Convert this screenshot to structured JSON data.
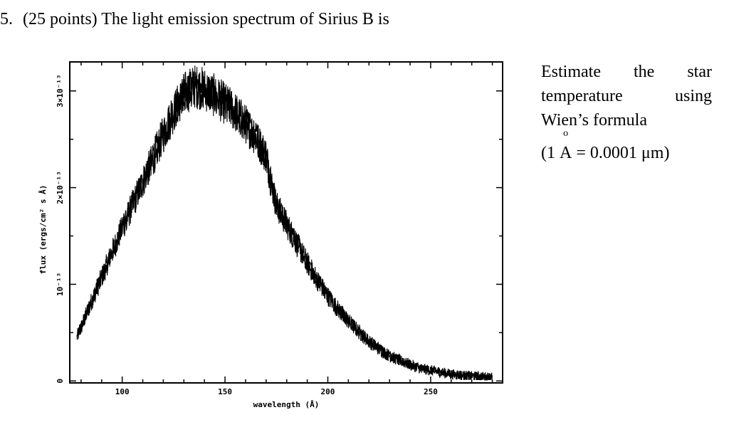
{
  "question": {
    "number": "5.",
    "text": "(25 points) The light emission spectrum of Sirius B is"
  },
  "side_text": {
    "line1_words": [
      "Estimate",
      "the",
      "star"
    ],
    "line2_words": [
      "temperature",
      "using"
    ],
    "line3": "Wien’s formula",
    "conversion_open": "(1",
    "angstrom_symbol": "A",
    "angstrom_ring": "o",
    "conversion_rest": "= 0.0001",
    "unit": "μm",
    "conversion_close": ")"
  },
  "chart_data": {
    "type": "line",
    "title": "",
    "xlabel": "wavelength (Å)",
    "ylabel": "flux (ergs/cm² s Å)",
    "x_tick_labels": [
      "100",
      "150",
      "200",
      "250"
    ],
    "x_ticks": [
      100,
      150,
      200,
      250
    ],
    "y_tick_labels": [
      "0",
      "10⁻¹³",
      "2×10⁻¹³",
      "3×10⁻¹³"
    ],
    "y_ticks": [
      0,
      1,
      2,
      3
    ],
    "xlim": [
      74.5,
      285
    ],
    "ylim": [
      -0.02,
      3.3
    ],
    "series": [
      {
        "x": [
          78,
          80,
          85,
          90,
          95,
          100,
          105,
          110,
          115,
          120,
          125,
          130,
          135,
          140,
          145,
          150,
          155,
          160,
          165,
          170,
          172,
          175,
          180,
          185,
          190,
          195,
          200,
          205,
          210,
          215,
          220,
          225,
          230,
          235,
          240,
          245,
          250,
          255,
          260,
          265,
          270,
          275,
          280
        ],
        "y": [
          0.45,
          0.55,
          0.82,
          1.07,
          1.33,
          1.58,
          1.82,
          2.06,
          2.3,
          2.55,
          2.78,
          2.97,
          3.05,
          3.02,
          2.95,
          2.87,
          2.78,
          2.66,
          2.52,
          2.33,
          2.1,
          1.82,
          1.62,
          1.42,
          1.22,
          1.04,
          0.88,
          0.74,
          0.62,
          0.51,
          0.41,
          0.33,
          0.26,
          0.21,
          0.17,
          0.13,
          0.11,
          0.09,
          0.07,
          0.06,
          0.05,
          0.045,
          0.04
        ]
      }
    ]
  }
}
